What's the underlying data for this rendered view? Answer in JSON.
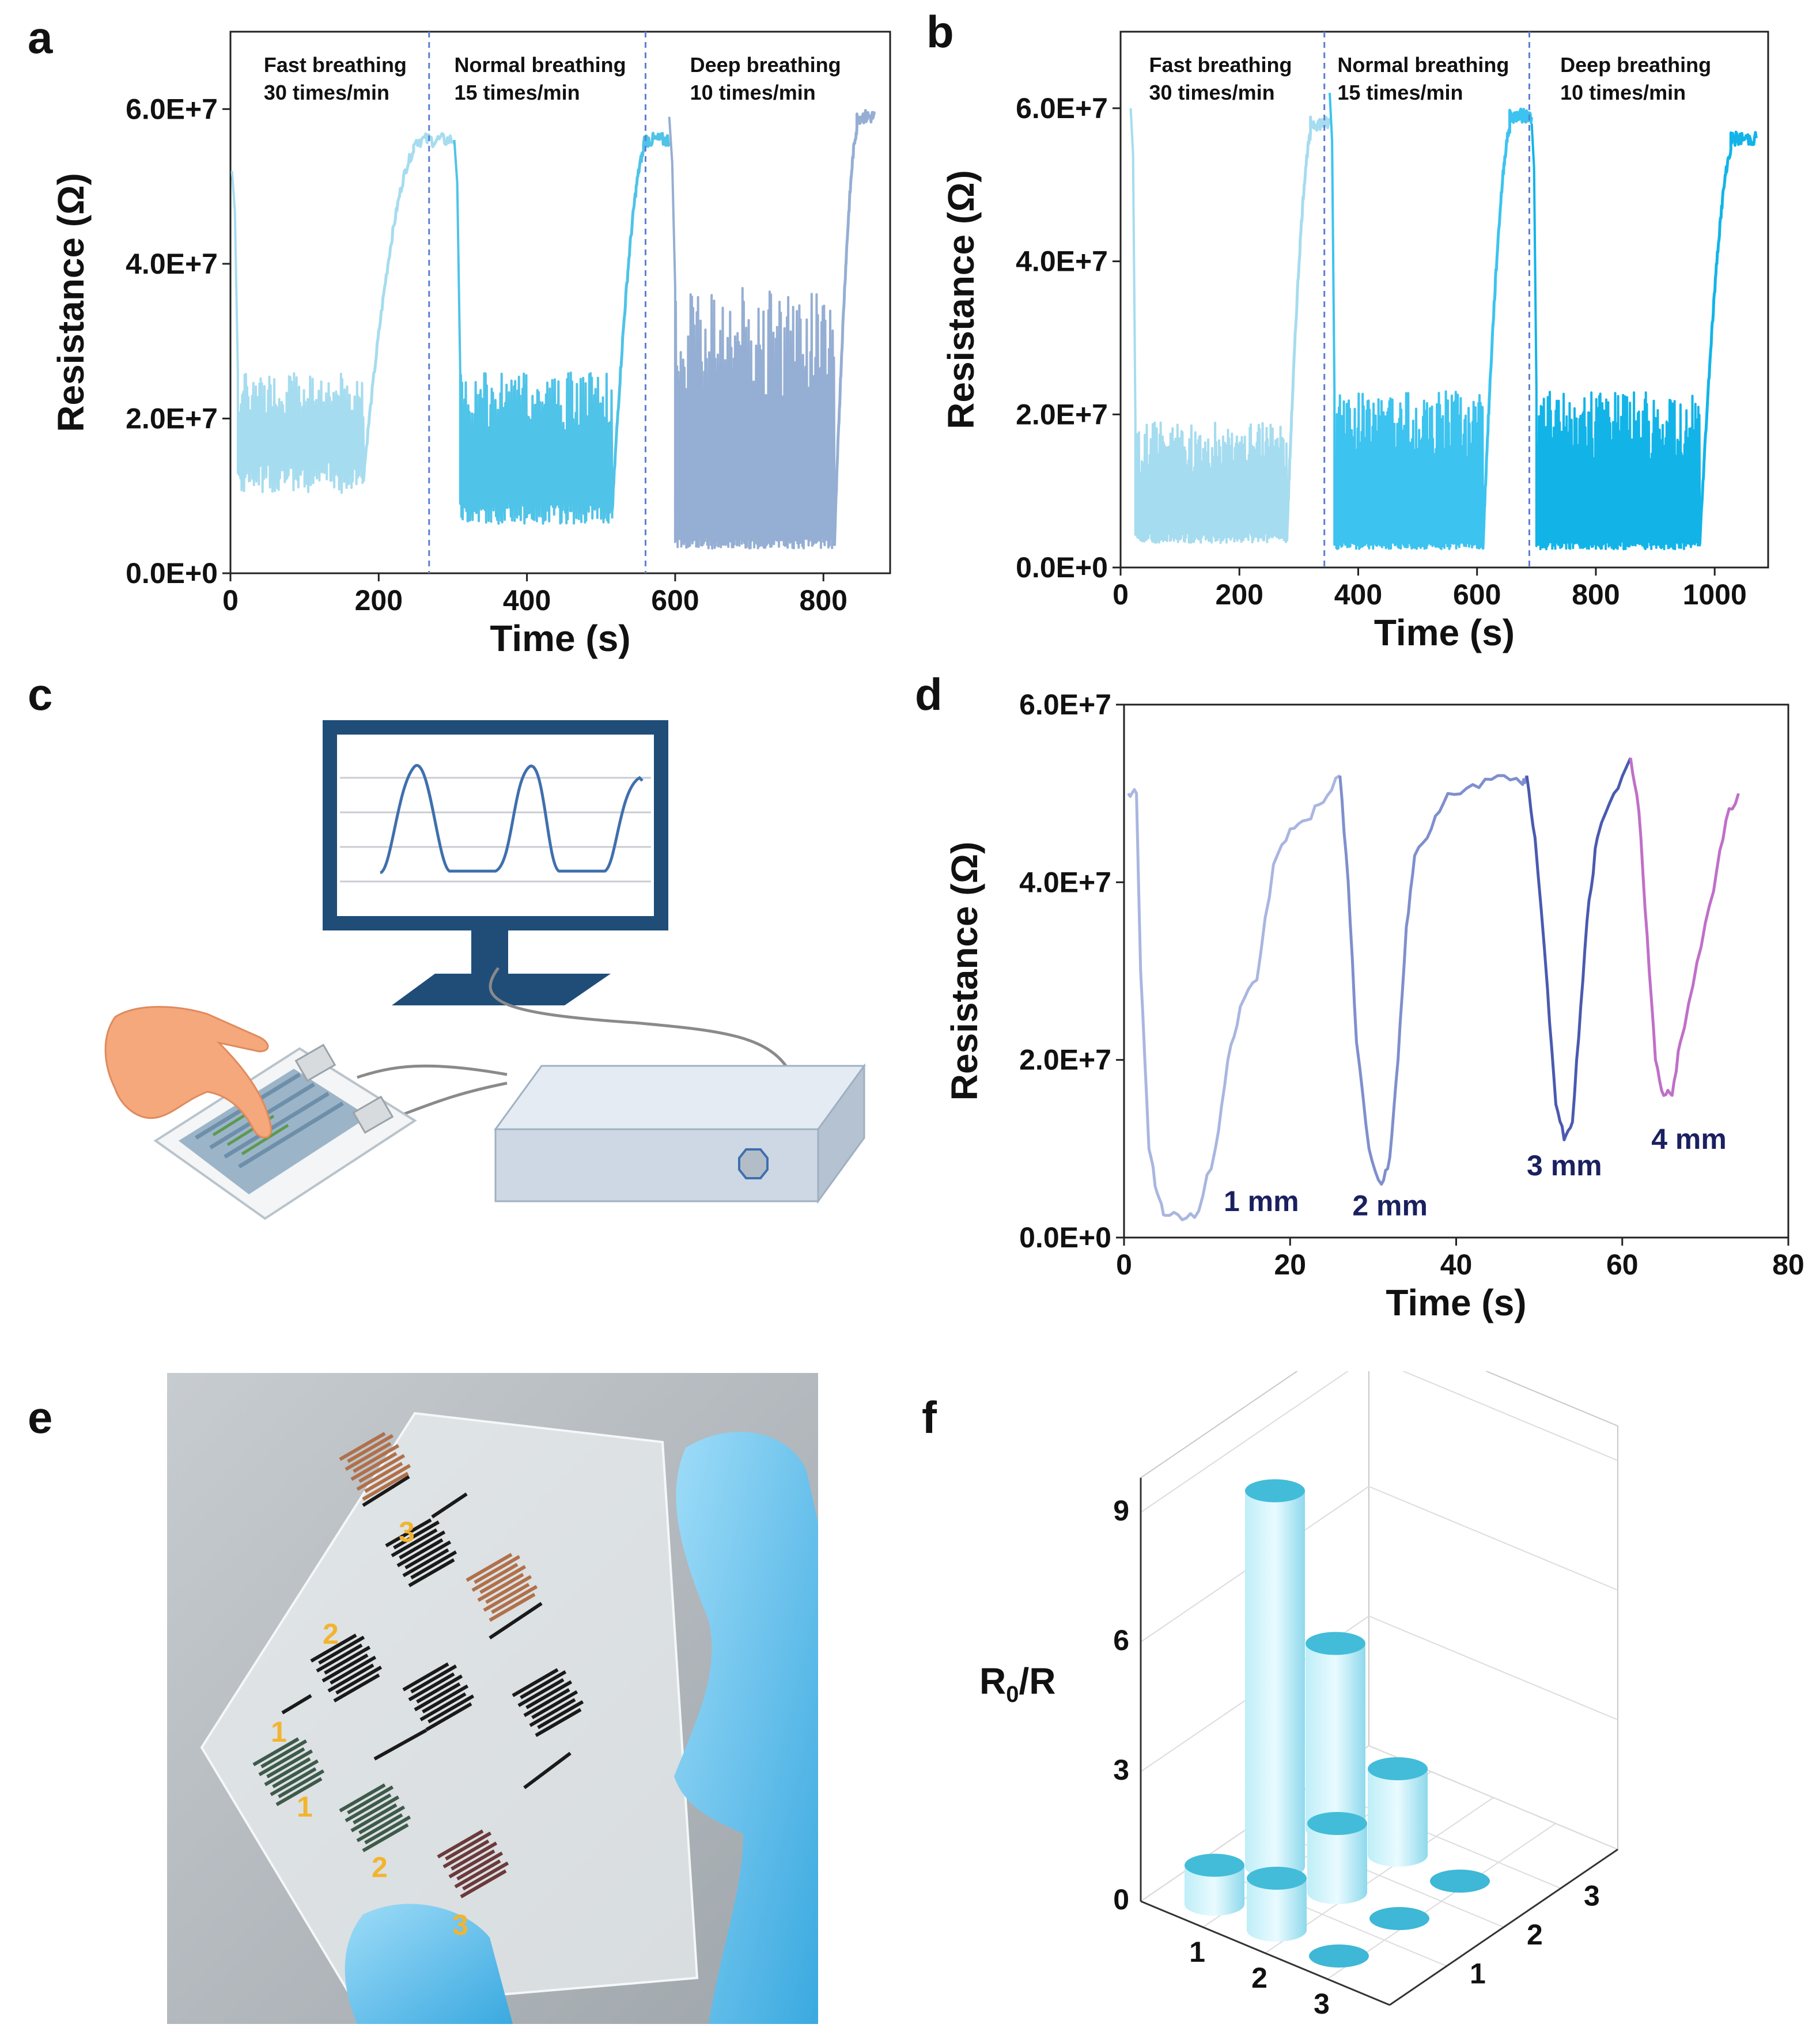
{
  "panels": {
    "a": "a",
    "b": "b",
    "c": "c",
    "d": "d",
    "e": "e",
    "f": "f"
  },
  "chart_data": [
    {
      "id": "a",
      "type": "line",
      "xlabel": "Time (s)",
      "ylabel": "Resistance (Ω)",
      "xlim": [
        0,
        890
      ],
      "ylim": [
        0,
        70000000.0
      ],
      "xticks": [
        0,
        200,
        400,
        600,
        800
      ],
      "yticks": [
        0,
        20000000.0,
        40000000.0,
        60000000.0
      ],
      "ytick_labels": [
        "0.0E+0",
        "2.0E+7",
        "4.0E+7",
        "6.0E+7"
      ],
      "dividers": [
        268,
        560
      ],
      "annotations": [
        {
          "x": 45,
          "line1": "Fast breathing",
          "line2": "30 times/min"
        },
        {
          "x": 302,
          "line1": "Normal breathing",
          "line2": "15 times/min"
        },
        {
          "x": 620,
          "line1": "Deep breathing",
          "line2": "10 times/min"
        }
      ],
      "segments": [
        {
          "name": "Fast breathing",
          "color": "#a6dcef",
          "t0": 10,
          "t1": 180,
          "low": 13000000.0,
          "high": 26000000.0,
          "start": 52000000.0,
          "plateau": 56000000.0
        },
        {
          "name": "Normal breathing",
          "color": "#4fc3e8",
          "t0": 310,
          "t1": 515,
          "low": 8000000.0,
          "high": 26000000.0,
          "start": 56000000.0,
          "plateau": 56000000.0
        },
        {
          "name": "Deep breathing",
          "color": "#95aed3",
          "t0": 600,
          "t1": 815,
          "low": 4000000.0,
          "high": 37000000.0,
          "start": 59000000.0,
          "plateau": 59000000.0
        }
      ]
    },
    {
      "id": "b",
      "type": "line",
      "xlabel": "Time (s)",
      "ylabel": "Resistance (Ω)",
      "xlim": [
        0,
        1090
      ],
      "ylim": [
        0,
        70000000.0
      ],
      "xticks": [
        0,
        200,
        400,
        600,
        800,
        1000
      ],
      "yticks": [
        0,
        20000000.0,
        40000000.0,
        60000000.0
      ],
      "ytick_labels": [
        "0.0E+0",
        "2.0E+7",
        "4.0E+7",
        "6.0E+7"
      ],
      "dividers": [
        343,
        688
      ],
      "annotations": [
        {
          "x": 48,
          "line1": "Fast breathing",
          "line2": "30 times/min"
        },
        {
          "x": 365,
          "line1": "Normal breathing",
          "line2": "15 times/min"
        },
        {
          "x": 740,
          "line1": "Deep breathing",
          "line2": "10 times/min"
        }
      ],
      "segments": [
        {
          "name": "Fast breathing",
          "color": "#a6dcef",
          "t0": 25,
          "t1": 280,
          "low": 4000000.0,
          "high": 19000000.0,
          "start": 60000000.0,
          "plateau": 58000000.0
        },
        {
          "name": "Normal breathing",
          "color": "#3cc3ef",
          "t0": 360,
          "t1": 610,
          "low": 3000000.0,
          "high": 23000000.0,
          "start": 62000000.0,
          "plateau": 59000000.0
        },
        {
          "name": "Deep breathing",
          "color": "#12b4e8",
          "t0": 700,
          "t1": 975,
          "low": 3000000.0,
          "high": 23000000.0,
          "start": 58000000.0,
          "plateau": 56000000.0
        }
      ]
    },
    {
      "id": "d",
      "type": "line",
      "xlabel": "Time (s)",
      "ylabel": "Resistance (Ω)",
      "xlim": [
        0,
        80
      ],
      "ylim": [
        0,
        60000000.0
      ],
      "xticks": [
        0,
        20,
        40,
        60,
        80
      ],
      "yticks": [
        0,
        20000000.0,
        40000000.0,
        60000000.0
      ],
      "ytick_labels": [
        "0.0E+0",
        "2.0E+7",
        "4.0E+7",
        "6.0E+7"
      ],
      "series": [
        {
          "name": "1 mm",
          "color": "#a9b6e0",
          "points": [
            [
              0.5,
              50000000.0
            ],
            [
              1.5,
              50000000.0
            ],
            [
              2,
              30000000.0
            ],
            [
              3,
              10000000.0
            ],
            [
              4,
              5000000.0
            ],
            [
              5,
              2500000.0
            ],
            [
              7,
              2000000.0
            ],
            [
              9,
              3000000.0
            ],
            [
              11,
              10000000.0
            ],
            [
              12.5,
              20000000.0
            ],
            [
              14,
              26000000.0
            ],
            [
              16,
              29000000.0
            ],
            [
              18,
              42000000.0
            ],
            [
              20,
              46000000.0
            ],
            [
              22,
              47000000.0
            ],
            [
              24,
              49000000.0
            ],
            [
              26,
              52000000.0
            ]
          ]
        },
        {
          "name": "2 mm",
          "color": "#7f8fce",
          "points": [
            [
              26,
              52000000.0
            ],
            [
              27,
              40000000.0
            ],
            [
              28,
              22000000.0
            ],
            [
              29.5,
              10000000.0
            ],
            [
              31,
              6000000.0
            ],
            [
              32,
              9000000.0
            ],
            [
              33,
              20000000.0
            ],
            [
              34,
              35000000.0
            ],
            [
              35,
              43000000.0
            ],
            [
              37,
              46000000.0
            ],
            [
              39,
              50000000.0
            ],
            [
              42,
              51000000.0
            ],
            [
              45,
              52000000.0
            ],
            [
              48,
              51000000.0
            ],
            [
              48.5,
              52000000.0
            ]
          ]
        },
        {
          "name": "3 mm",
          "color": "#4a5ab0",
          "points": [
            [
              48.5,
              52000000.0
            ],
            [
              49.5,
              45000000.0
            ],
            [
              51,
              28000000.0
            ],
            [
              52,
              15000000.0
            ],
            [
              53,
              11000000.0
            ],
            [
              54,
              13000000.0
            ],
            [
              55,
              26000000.0
            ],
            [
              56,
              38000000.0
            ],
            [
              57,
              45000000.0
            ],
            [
              59,
              50000000.0
            ],
            [
              61,
              54000000.0
            ]
          ]
        },
        {
          "name": "4 mm",
          "color": "#c06fc8",
          "points": [
            [
              61,
              54000000.0
            ],
            [
              62,
              48000000.0
            ],
            [
              63,
              34000000.0
            ],
            [
              64,
              20000000.0
            ],
            [
              65,
              16000000.0
            ],
            [
              66,
              16000000.0
            ],
            [
              67,
              22000000.0
            ],
            [
              69,
              31000000.0
            ],
            [
              71,
              39000000.0
            ],
            [
              72.5,
              47000000.0
            ],
            [
              74,
              50000000.0
            ]
          ]
        }
      ],
      "labels": [
        {
          "text": "1 mm",
          "x": 12,
          "y": 3000000.0
        },
        {
          "text": "2 mm",
          "x": 27.5,
          "y": 2500000.0
        },
        {
          "text": "3 mm",
          "x": 48.5,
          "y": 7000000.0
        },
        {
          "text": "4 mm",
          "x": 63.5,
          "y": 10000000.0
        }
      ]
    },
    {
      "id": "f",
      "type": "bar3d",
      "zlabel_main": "R",
      "zlabel_sub": "0",
      "zlabel_tail": "/R",
      "zlim": [
        0,
        9
      ],
      "zticks": [
        0,
        3,
        6,
        9
      ],
      "x_categories": [
        "1",
        "2",
        "3"
      ],
      "y_categories": [
        "1",
        "2",
        "3"
      ],
      "bars": [
        {
          "x": 1,
          "y": 1,
          "value": 0.9
        },
        {
          "x": 2,
          "y": 1,
          "value": 1.2
        },
        {
          "x": 3,
          "y": 1,
          "value": 0.0
        },
        {
          "x": 1,
          "y": 2,
          "value": 8.7
        },
        {
          "x": 2,
          "y": 2,
          "value": 1.6
        },
        {
          "x": 3,
          "y": 2,
          "value": 0.0
        },
        {
          "x": 1,
          "y": 3,
          "value": 4.3
        },
        {
          "x": 2,
          "y": 3,
          "value": 2.0
        },
        {
          "x": 3,
          "y": 3,
          "value": 0.0
        }
      ]
    }
  ],
  "photo_labels": [
    "3",
    "2",
    "1",
    "1",
    "2",
    "3"
  ]
}
